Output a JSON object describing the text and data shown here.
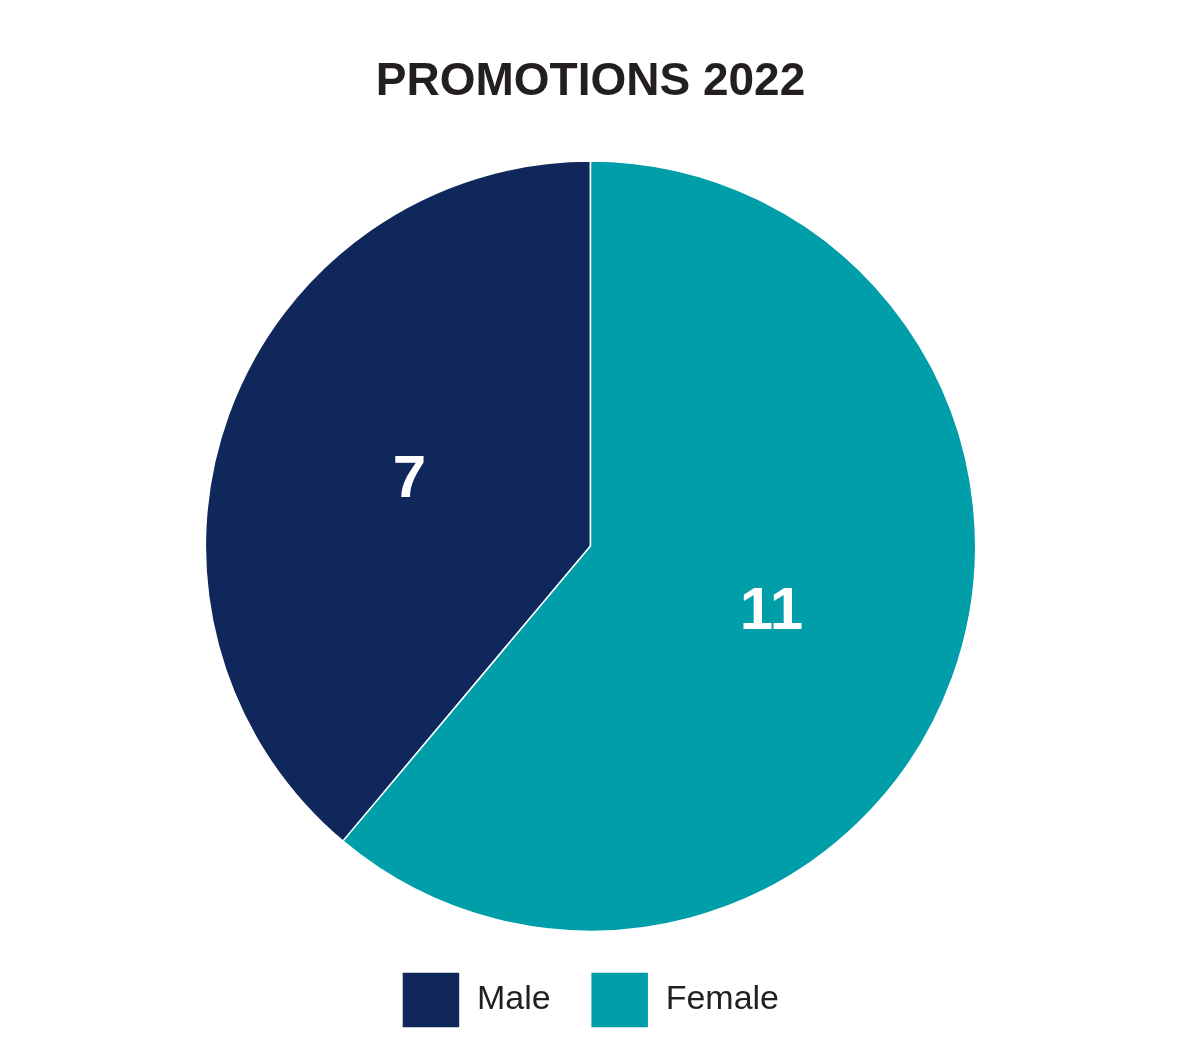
{
  "chart_data": {
    "type": "pie",
    "title": "PROMOTIONS 2022",
    "categories": [
      "Male",
      "Female"
    ],
    "values": [
      7,
      11
    ],
    "colors": [
      "#10275c",
      "#009ea8"
    ],
    "data_labels": true,
    "legend": "bottom"
  }
}
